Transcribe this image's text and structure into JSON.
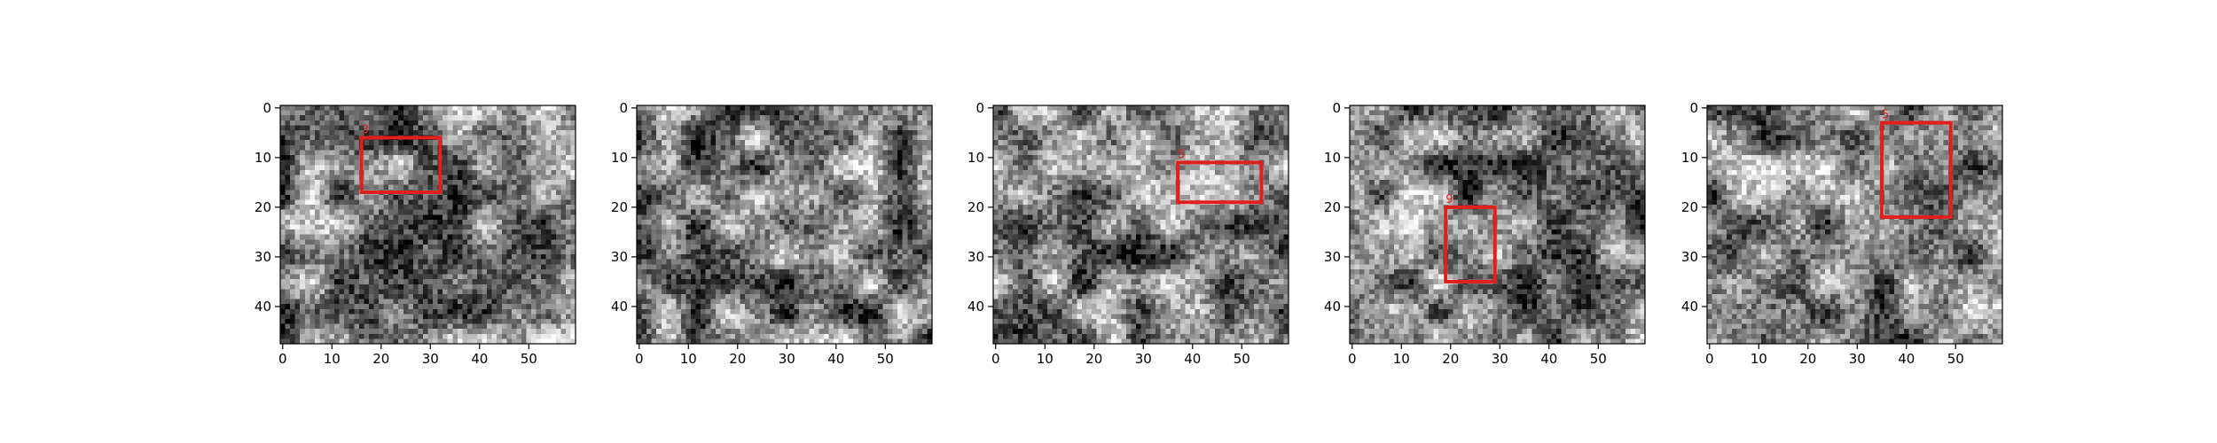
{
  "chart_data": [
    {
      "type": "image",
      "xlim": [
        -0.5,
        59.5
      ],
      "ylim": [
        47.5,
        -0.5
      ],
      "xticks": [
        0,
        10,
        20,
        30,
        40,
        50
      ],
      "yticks": [
        0,
        10,
        20,
        30,
        40
      ],
      "box_color": "#e0201c",
      "box": {
        "label": "3",
        "x0": 16,
        "x1": 32,
        "y0": 6,
        "y1": 17
      }
    },
    {
      "type": "image",
      "xlim": [
        -0.5,
        59.5
      ],
      "ylim": [
        47.5,
        -0.5
      ],
      "xticks": [
        0,
        10,
        20,
        30,
        40,
        50
      ],
      "yticks": [
        0,
        10,
        20,
        30,
        40
      ],
      "box_color": "#e0201c"
    },
    {
      "type": "image",
      "xlim": [
        -0.5,
        59.5
      ],
      "ylim": [
        47.5,
        -0.5
      ],
      "xticks": [
        0,
        10,
        20,
        30,
        40,
        50
      ],
      "yticks": [
        0,
        10,
        20,
        30,
        40
      ],
      "box_color": "#e0201c",
      "box": {
        "label": "5",
        "x0": 37,
        "x1": 54,
        "y0": 11,
        "y1": 19
      }
    },
    {
      "type": "image",
      "xlim": [
        -0.5,
        59.5
      ],
      "ylim": [
        47.5,
        -0.5
      ],
      "xticks": [
        0,
        10,
        20,
        30,
        40,
        50
      ],
      "yticks": [
        0,
        10,
        20,
        30,
        40
      ],
      "box_color": "#e0201c",
      "box": {
        "label": "9",
        "x0": 19,
        "x1": 29,
        "y0": 20,
        "y1": 35
      }
    },
    {
      "type": "image",
      "xlim": [
        -0.5,
        59.5
      ],
      "ylim": [
        47.5,
        -0.5
      ],
      "xticks": [
        0,
        10,
        20,
        30,
        40,
        50
      ],
      "yticks": [
        0,
        10,
        20,
        30,
        40
      ],
      "box_color": "#e0201c",
      "box": {
        "label": "5",
        "x0": 35,
        "x1": 49,
        "y0": 3,
        "y1": 22
      }
    }
  ]
}
